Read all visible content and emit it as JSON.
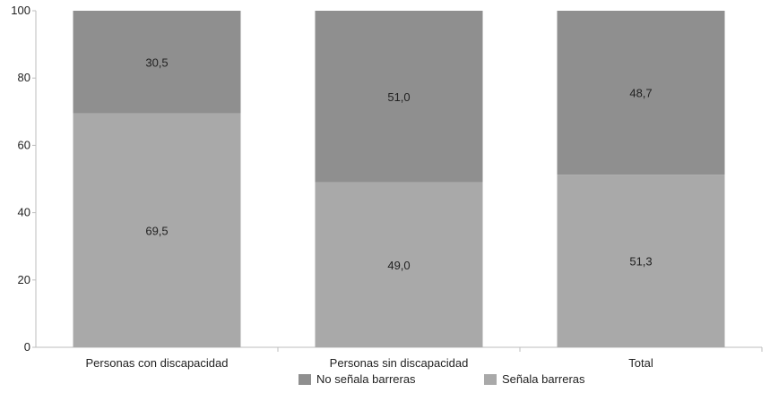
{
  "chart_data": {
    "type": "bar",
    "stacked": true,
    "categories": [
      "Personas con discapacidad",
      "Personas sin discapacidad",
      "Total"
    ],
    "series": [
      {
        "name": "Señala barreras",
        "values": [
          69.5,
          49.0,
          51.3
        ],
        "labels": [
          "69,5",
          "49,0",
          "51,3"
        ],
        "color": "#a9a9a9"
      },
      {
        "name": "No señala barreras",
        "values": [
          30.5,
          51.0,
          48.7
        ],
        "labels": [
          "30,5",
          "51,0",
          "48,7"
        ],
        "color": "#8f8f8f"
      }
    ],
    "ylim": [
      0,
      100
    ],
    "yticks": [
      0,
      20,
      40,
      60,
      80,
      100
    ],
    "title": "",
    "xlabel": "",
    "ylabel": "",
    "grid": false,
    "legend": {
      "position": "bottom",
      "entries": [
        {
          "label": "No señala barreras",
          "color": "#8f8f8f"
        },
        {
          "label": "Señala barreras",
          "color": "#a9a9a9"
        }
      ]
    }
  }
}
